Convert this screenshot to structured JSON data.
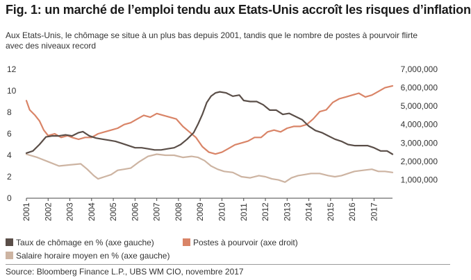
{
  "title": "Fig. 1: un marché de l’emploi tendu aux Etats-Unis accroît les risques d’inflation",
  "subtitle": "Aux Etats-Unis, le chômage se situe à un plus bas depuis 2001, tandis que le nombre de postes à pourvoir flirte avec des niveaux record",
  "source": "Source: Bloomberg Finance L.P., UBS WM CIO, novembre 2017",
  "chart_data": {
    "type": "line",
    "x_ticks": [
      "2001",
      "2002",
      "2003",
      "2004",
      "2005",
      "2006",
      "2007",
      "2008",
      "2009",
      "2010",
      "2011",
      "2012",
      "2013",
      "2014",
      "2015",
      "2016",
      "2017"
    ],
    "x_range": [
      2001.0,
      2017.85
    ],
    "y_left": {
      "ticks": [
        "0",
        "2",
        "4",
        "6",
        "8",
        "10",
        "12"
      ],
      "range": [
        0,
        12
      ]
    },
    "y_right": {
      "ticks": [
        "1,000,000",
        "2,000,000",
        "3,000,000",
        "4,000,000",
        "5,000,000",
        "6,000,000",
        "7,000,000"
      ],
      "range": [
        0,
        7000000
      ]
    },
    "grid": false,
    "legend_position": "bottom",
    "series": [
      {
        "name": "Taux de chômage en % (axe gauche)",
        "axis": "left",
        "color": "#5a4e48",
        "x": [
          2001.0,
          2001.3,
          2001.6,
          2001.9,
          2002.2,
          2002.5,
          2002.8,
          2003.1,
          2003.4,
          2003.6,
          2003.9,
          2004.2,
          2004.5,
          2004.8,
          2005.1,
          2005.4,
          2005.7,
          2006.0,
          2006.3,
          2006.6,
          2006.9,
          2007.2,
          2007.5,
          2007.8,
          2008.1,
          2008.4,
          2008.7,
          2008.9,
          2009.1,
          2009.3,
          2009.5,
          2009.7,
          2009.9,
          2010.2,
          2010.5,
          2010.8,
          2011.0,
          2011.3,
          2011.6,
          2011.9,
          2012.2,
          2012.5,
          2012.8,
          2013.1,
          2013.4,
          2013.7,
          2014.0,
          2014.3,
          2014.6,
          2014.9,
          2015.2,
          2015.5,
          2015.8,
          2016.1,
          2016.4,
          2016.7,
          2017.0,
          2017.3,
          2017.6,
          2017.85
        ],
        "y": [
          4.2,
          4.4,
          5.0,
          5.7,
          5.8,
          5.8,
          5.9,
          5.8,
          6.1,
          6.2,
          5.8,
          5.6,
          5.5,
          5.4,
          5.3,
          5.1,
          4.9,
          4.7,
          4.7,
          4.6,
          4.5,
          4.5,
          4.6,
          4.7,
          5.0,
          5.5,
          6.1,
          6.9,
          7.8,
          8.9,
          9.5,
          9.8,
          9.9,
          9.8,
          9.5,
          9.6,
          9.1,
          9.0,
          9.0,
          8.7,
          8.2,
          8.2,
          7.8,
          7.9,
          7.6,
          7.3,
          6.7,
          6.3,
          6.1,
          5.8,
          5.5,
          5.3,
          5.0,
          4.9,
          4.9,
          4.9,
          4.7,
          4.4,
          4.4,
          4.1
        ]
      },
      {
        "name": "Postes à pourvoir (axe droit)",
        "axis": "right",
        "color": "#d98467",
        "x": [
          2001.0,
          2001.15,
          2001.4,
          2001.6,
          2001.8,
          2002.0,
          2002.3,
          2002.6,
          2002.9,
          2003.1,
          2003.4,
          2003.7,
          2004.0,
          2004.3,
          2004.6,
          2004.9,
          2005.2,
          2005.5,
          2005.8,
          2006.1,
          2006.4,
          2006.7,
          2007.0,
          2007.3,
          2007.6,
          2007.9,
          2008.2,
          2008.5,
          2008.8,
          2009.1,
          2009.4,
          2009.7,
          2010.0,
          2010.3,
          2010.6,
          2010.9,
          2011.2,
          2011.5,
          2011.8,
          2012.1,
          2012.4,
          2012.7,
          2013.0,
          2013.3,
          2013.6,
          2013.9,
          2014.2,
          2014.5,
          2014.8,
          2015.1,
          2015.4,
          2015.7,
          2016.0,
          2016.3,
          2016.6,
          2016.9,
          2017.2,
          2017.5,
          2017.85
        ],
        "y": [
          5300000,
          4800000,
          4500000,
          4200000,
          3700000,
          3400000,
          3500000,
          3300000,
          3400000,
          3300000,
          3200000,
          3300000,
          3300000,
          3500000,
          3600000,
          3700000,
          3800000,
          4000000,
          4100000,
          4300000,
          4500000,
          4400000,
          4600000,
          4500000,
          4400000,
          4300000,
          3900000,
          3600000,
          3300000,
          2800000,
          2500000,
          2400000,
          2500000,
          2700000,
          2900000,
          3000000,
          3100000,
          3300000,
          3300000,
          3600000,
          3700000,
          3600000,
          3800000,
          3900000,
          3900000,
          4000000,
          4300000,
          4700000,
          4800000,
          5200000,
          5400000,
          5500000,
          5600000,
          5700000,
          5500000,
          5600000,
          5800000,
          6000000,
          6100000
        ]
      },
      {
        "name": "Salaire horaire moyen en % (axe gauche)",
        "axis": "left",
        "color": "#cdb4a2",
        "x": [
          2001.0,
          2001.5,
          2002.0,
          2002.5,
          2003.0,
          2003.5,
          2003.8,
          2004.1,
          2004.3,
          2004.6,
          2004.9,
          2005.2,
          2005.5,
          2005.8,
          2006.2,
          2006.6,
          2007.0,
          2007.4,
          2007.8,
          2008.2,
          2008.6,
          2008.9,
          2009.2,
          2009.5,
          2009.8,
          2010.1,
          2010.5,
          2010.9,
          2011.3,
          2011.7,
          2012.0,
          2012.3,
          2012.6,
          2012.9,
          2013.2,
          2013.5,
          2013.8,
          2014.1,
          2014.5,
          2014.9,
          2015.2,
          2015.5,
          2015.8,
          2016.1,
          2016.5,
          2016.9,
          2017.2,
          2017.5,
          2017.85
        ],
        "y": [
          4.1,
          3.8,
          3.4,
          3.0,
          3.1,
          3.2,
          2.7,
          2.1,
          1.8,
          2.0,
          2.2,
          2.6,
          2.7,
          2.8,
          3.4,
          3.9,
          4.1,
          4.0,
          4.0,
          3.8,
          3.9,
          3.8,
          3.5,
          3.0,
          2.7,
          2.5,
          2.4,
          2.0,
          1.9,
          2.1,
          2.0,
          1.8,
          1.7,
          1.5,
          1.9,
          2.1,
          2.2,
          2.3,
          2.3,
          2.1,
          2.0,
          2.1,
          2.3,
          2.5,
          2.6,
          2.7,
          2.5,
          2.5,
          2.4
        ]
      }
    ]
  }
}
